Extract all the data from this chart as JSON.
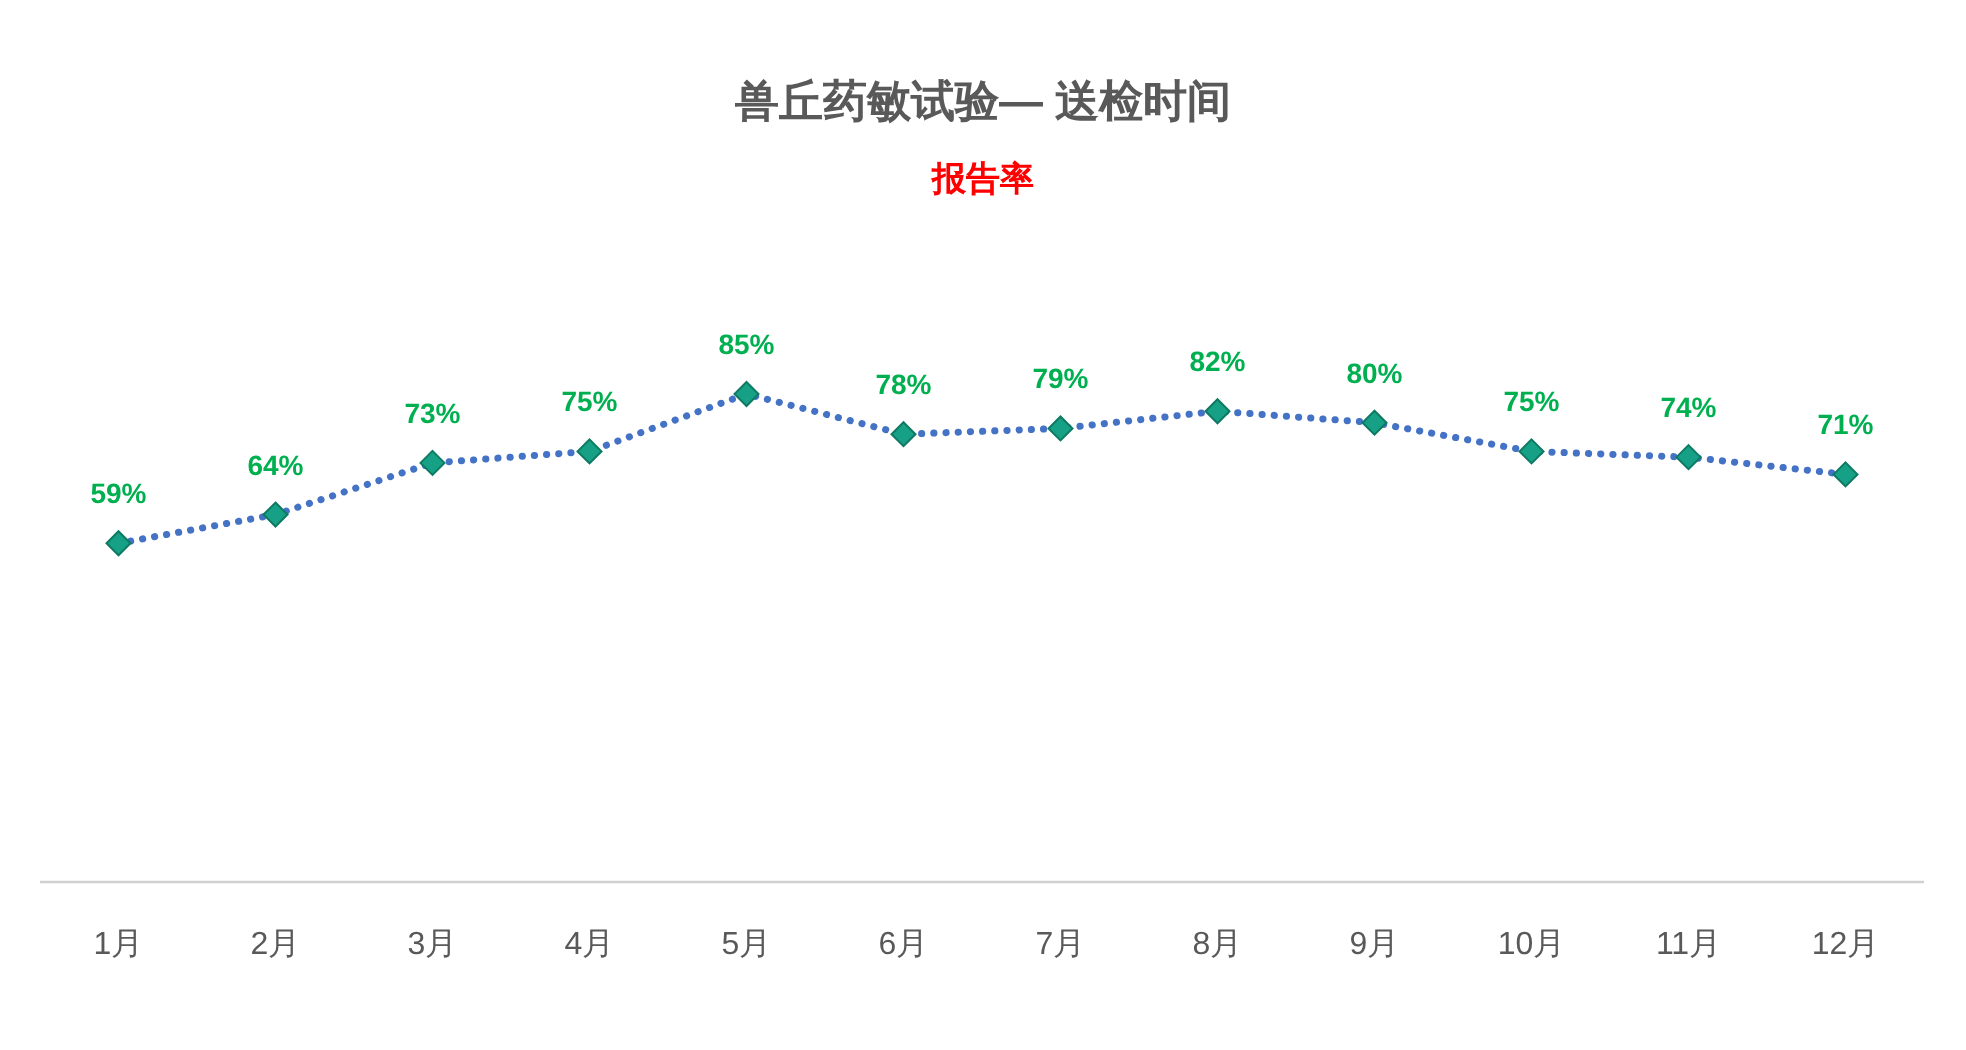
{
  "chart_data": {
    "type": "line",
    "title": "兽丘药敏试验— 送检时间",
    "subtitle": "报告率",
    "categories": [
      "1月",
      "2月",
      "3月",
      "4月",
      "5月",
      "6月",
      "7月",
      "8月",
      "9月",
      "10月",
      "11月",
      "12月"
    ],
    "series": [
      {
        "color": "#4472c4",
        "values": [
          59,
          64,
          73,
          75,
          85,
          78,
          79,
          82,
          80,
          75,
          74,
          71
        ],
        "value_labels": [
          "59%",
          "64%",
          "73%",
          "75%",
          "85%",
          "78%",
          "79%",
          "82%",
          "80%",
          "75%",
          "74%",
          "71%"
        ]
      }
    ],
    "tick_labels": "x",
    "grid": false,
    "marker": "diamond",
    "line_style": "dotted"
  }
}
